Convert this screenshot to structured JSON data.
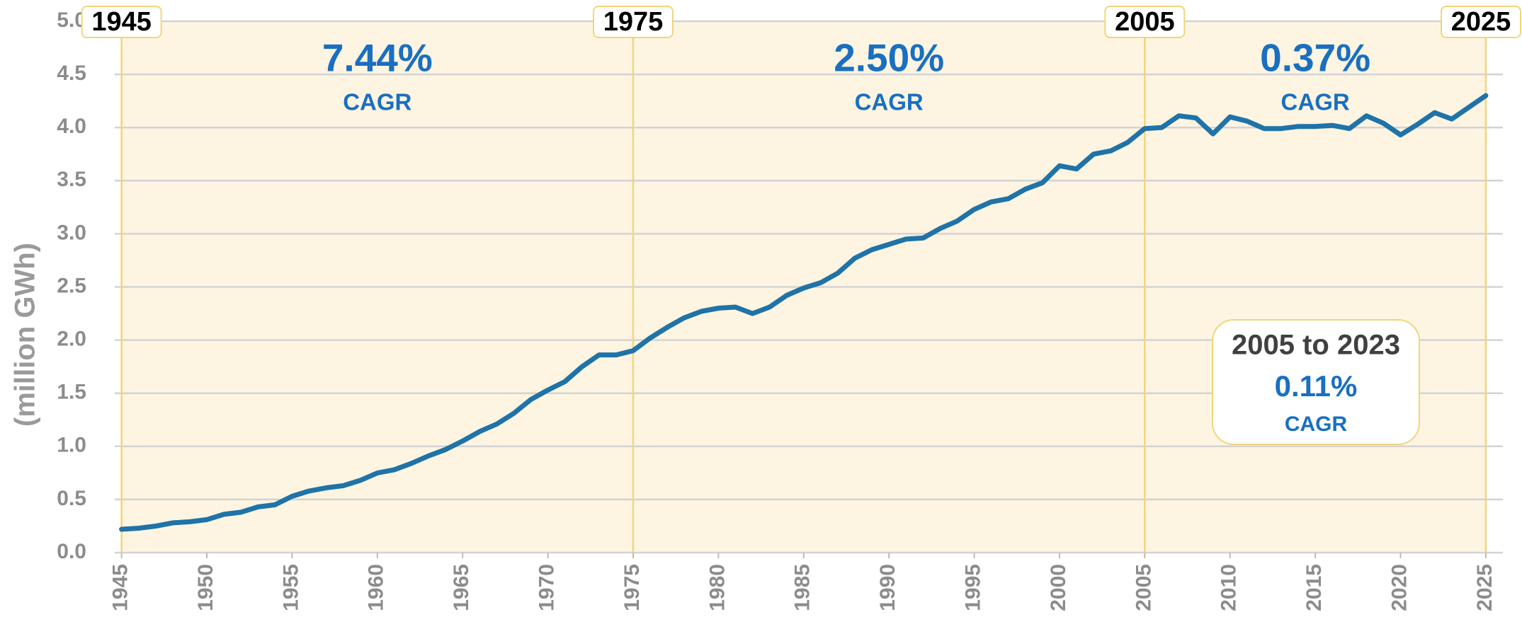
{
  "chart_data": {
    "type": "line",
    "y_label": "(million GWh)",
    "x": [
      1945,
      1946,
      1947,
      1948,
      1949,
      1950,
      1951,
      1952,
      1953,
      1954,
      1955,
      1956,
      1957,
      1958,
      1959,
      1960,
      1961,
      1962,
      1963,
      1964,
      1965,
      1966,
      1967,
      1968,
      1969,
      1970,
      1971,
      1972,
      1973,
      1974,
      1975,
      1976,
      1977,
      1978,
      1979,
      1980,
      1981,
      1982,
      1983,
      1984,
      1985,
      1986,
      1987,
      1988,
      1989,
      1990,
      1991,
      1992,
      1993,
      1994,
      1995,
      1996,
      1997,
      1998,
      1999,
      2000,
      2001,
      2002,
      2003,
      2004,
      2005,
      2006,
      2007,
      2008,
      2009,
      2010,
      2011,
      2012,
      2013,
      2014,
      2015,
      2016,
      2017,
      2018,
      2019,
      2020,
      2021,
      2022,
      2023,
      2024,
      2025
    ],
    "values": [
      0.22,
      0.23,
      0.25,
      0.28,
      0.29,
      0.31,
      0.36,
      0.38,
      0.43,
      0.45,
      0.53,
      0.58,
      0.61,
      0.63,
      0.68,
      0.75,
      0.78,
      0.84,
      0.91,
      0.97,
      1.05,
      1.14,
      1.21,
      1.31,
      1.44,
      1.53,
      1.61,
      1.75,
      1.86,
      1.86,
      1.9,
      2.02,
      2.12,
      2.21,
      2.27,
      2.3,
      2.31,
      2.25,
      2.31,
      2.42,
      2.49,
      2.54,
      2.63,
      2.77,
      2.85,
      2.9,
      2.95,
      2.96,
      3.05,
      3.12,
      3.23,
      3.3,
      3.33,
      3.42,
      3.48,
      3.64,
      3.61,
      3.75,
      3.78,
      3.86,
      3.99,
      4.0,
      4.11,
      4.09,
      3.94,
      4.1,
      4.06,
      3.99,
      3.99,
      4.01,
      4.01,
      4.02,
      3.99,
      4.11,
      4.04,
      3.93,
      4.03,
      4.14,
      4.08,
      4.19,
      4.3
    ],
    "color": "#1f73a8",
    "xlim": [
      1944.6,
      2026
    ],
    "xticks": [
      1945,
      1950,
      1955,
      1960,
      1965,
      1970,
      1975,
      1980,
      1985,
      1990,
      1995,
      2000,
      2005,
      2010,
      2015,
      2020,
      2025
    ],
    "ylim": [
      0,
      5
    ],
    "yticks": [
      {
        "value": 0,
        "label": "0.0"
      },
      {
        "value": 0.5,
        "label": "0.5"
      },
      {
        "value": 1,
        "label": "1.0"
      },
      {
        "value": 1.5,
        "label": "1.5"
      },
      {
        "value": 2,
        "label": "2.0"
      },
      {
        "value": 2.5,
        "label": "2.5"
      },
      {
        "value": 3,
        "label": "3.0"
      },
      {
        "value": 3.5,
        "label": "3.5"
      },
      {
        "value": 4,
        "label": "4.0"
      },
      {
        "value": 4.5,
        "label": "4.5"
      },
      {
        "value": 5,
        "label": "5.0"
      }
    ],
    "grid": true,
    "period_markers": [
      1945,
      1975,
      2005,
      2025
    ],
    "periods": [
      {
        "text": "7.44%",
        "sub": "CAGR"
      },
      {
        "text": "2.50%",
        "sub": "CAGR"
      },
      {
        "text": "0.37%",
        "sub": "CAGR"
      }
    ],
    "inset": {
      "title": "2005 to 2023",
      "text": "0.11%",
      "sub": "CAGR"
    }
  }
}
